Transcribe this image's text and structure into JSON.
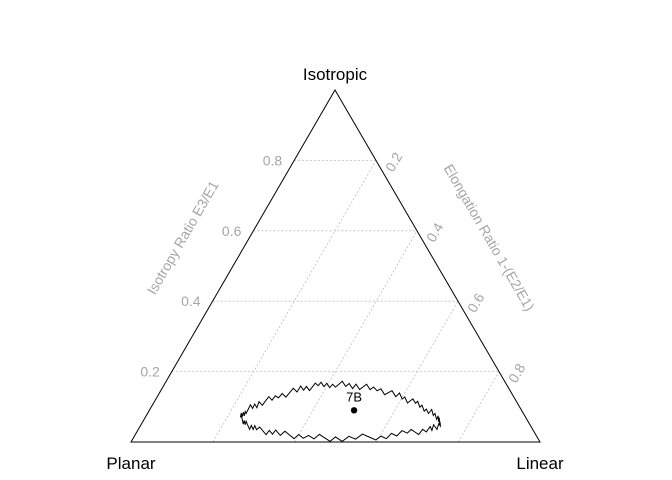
{
  "chart_data": {
    "type": "scatter",
    "subtype": "ternary-eigenvalue-plot",
    "title": "",
    "vertices": {
      "top": "Isotropic",
      "left": "Planar",
      "right": "Linear"
    },
    "axes": {
      "isotropy": {
        "label": "Isotropy Ratio E3/E1",
        "ticks": [
          0.2,
          0.4,
          0.6,
          0.8
        ],
        "tick_labels": [
          "0.2",
          "0.4",
          "0.6",
          "0.8"
        ]
      },
      "elongation": {
        "label": "Elongation Ratio 1-(E2/E1)",
        "ticks": [
          0.2,
          0.4,
          0.6,
          0.8
        ],
        "tick_labels": [
          "0.2",
          "0.4",
          "0.6",
          "0.8"
        ]
      }
    },
    "grid": true,
    "colors": {
      "frame": "#000000",
      "grid": "#bdbdbd",
      "axis_text": "#a6a6a6",
      "point": "#000000",
      "contour": "#000000"
    },
    "points": [
      {
        "label": "7B",
        "isotropy": 0.09,
        "elongation": 0.55
      }
    ],
    "confidence_contour": [
      [
        0.05,
        0.27
      ],
      [
        0.07,
        0.25
      ],
      [
        0.09,
        0.26
      ],
      [
        0.11,
        0.29
      ],
      [
        0.13,
        0.34
      ],
      [
        0.15,
        0.4
      ],
      [
        0.16,
        0.45
      ],
      [
        0.165,
        0.5
      ],
      [
        0.16,
        0.56
      ],
      [
        0.15,
        0.62
      ],
      [
        0.13,
        0.68
      ],
      [
        0.11,
        0.72
      ],
      [
        0.09,
        0.75
      ],
      [
        0.07,
        0.77
      ],
      [
        0.05,
        0.77
      ],
      [
        0.035,
        0.74
      ],
      [
        0.025,
        0.68
      ],
      [
        0.015,
        0.6
      ],
      [
        0.01,
        0.5
      ],
      [
        0.015,
        0.42
      ],
      [
        0.025,
        0.35
      ],
      [
        0.035,
        0.3
      ],
      [
        0.05,
        0.27
      ]
    ]
  }
}
